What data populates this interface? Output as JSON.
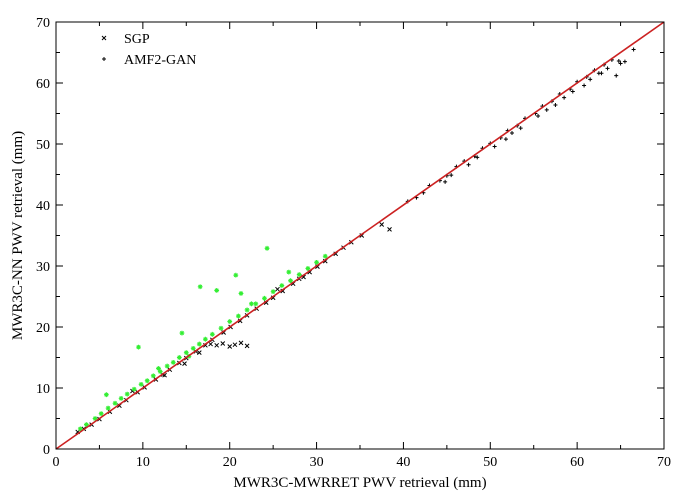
{
  "chart_data": {
    "type": "scatter",
    "xlabel": "MWR3C-MWRRET PWV retrieval (mm)",
    "ylabel": "MWR3C-NN PWV retrieval (mm)",
    "xlim": [
      0,
      70
    ],
    "ylim": [
      0,
      70
    ],
    "x_ticks": [
      "0",
      "10",
      "20",
      "30",
      "40",
      "50",
      "60",
      "70"
    ],
    "y_ticks": [
      "0",
      "10",
      "20",
      "30",
      "40",
      "50",
      "60",
      "70"
    ],
    "grid": false,
    "legend_position": "top-left",
    "legend": [
      {
        "label": "SGP",
        "marker": "x",
        "color": "#000000"
      },
      {
        "label": "AMF2-GAN",
        "marker": "+",
        "color": "#000000"
      }
    ],
    "series": [
      {
        "name": "SGP",
        "marker": "x",
        "color": "#000000",
        "x": [
          2.5,
          3.2,
          4.1,
          5.0,
          6.2,
          7.3,
          8.1,
          9.4,
          10.2,
          11.5,
          12.3,
          13.1,
          14.2,
          15.0,
          16.1,
          17.2,
          18.0,
          19.3,
          20.1,
          21.2,
          22.0,
          23.1,
          24.2,
          25.0,
          26.1,
          27.3,
          28.0,
          29.2,
          30.1,
          31.0,
          32.2,
          33.1,
          34.0,
          35.2,
          37.5,
          38.4,
          17.8,
          18.5,
          19.2,
          20.0,
          20.6,
          21.3,
          22.0,
          8.8,
          12.5,
          16.5,
          14.8,
          25.5,
          28.5
        ],
        "y": [
          2.8,
          3.3,
          4.0,
          4.9,
          6.1,
          7.1,
          8.0,
          9.3,
          10.1,
          11.4,
          12.2,
          13.0,
          14.1,
          14.9,
          16.0,
          17.0,
          17.9,
          19.1,
          20.0,
          21.0,
          21.9,
          23.0,
          24.0,
          24.8,
          25.9,
          27.1,
          27.9,
          29.0,
          29.9,
          30.8,
          32.0,
          33.0,
          33.9,
          35.0,
          36.8,
          36.0,
          17.2,
          17.0,
          17.3,
          16.8,
          17.1,
          17.4,
          16.9,
          9.5,
          12.1,
          15.8,
          14.0,
          26.2,
          28.2
        ]
      },
      {
        "name": "AMF2-GAN",
        "marker": "+",
        "color": "#000000",
        "x": [
          40.5,
          41.5,
          42.3,
          43.0,
          44.2,
          45.0,
          46.1,
          47.0,
          48.2,
          49.1,
          50.0,
          51.2,
          52.0,
          53.1,
          54.0,
          55.2,
          56.0,
          57.1,
          58.0,
          59.2,
          60.0,
          61.1,
          62.0,
          63.1,
          64.0,
          65.0,
          66.5,
          45.5,
          48.5,
          52.5,
          55.5,
          58.5,
          61.5,
          63.5,
          65.5,
          64.5,
          47.5,
          50.5,
          53.5,
          56.5,
          59.5,
          62.5,
          57.5,
          60.8,
          62.8,
          64.8,
          44.8,
          51.8
        ],
        "y": [
          40.6,
          41.2,
          42.0,
          43.2,
          44.0,
          44.8,
          46.3,
          47.2,
          48.0,
          49.3,
          50.1,
          51.0,
          52.2,
          53.0,
          54.2,
          55.0,
          56.2,
          57.0,
          58.2,
          59.0,
          60.2,
          61.0,
          62.1,
          63.0,
          63.8,
          63.2,
          65.5,
          44.9,
          47.8,
          51.8,
          54.6,
          57.6,
          60.6,
          62.4,
          63.5,
          61.2,
          46.6,
          49.6,
          52.6,
          55.6,
          58.6,
          61.6,
          56.4,
          59.6,
          61.6,
          63.6,
          43.8,
          50.8
        ]
      },
      {
        "name": "",
        "marker": "*",
        "color": "#33ee33",
        "x": [
          2.8,
          3.5,
          4.5,
          5.2,
          6.0,
          6.8,
          7.5,
          8.2,
          9.0,
          9.8,
          10.5,
          11.2,
          12.0,
          12.8,
          13.5,
          14.2,
          15.0,
          15.8,
          16.5,
          17.2,
          18.0,
          19.0,
          20.0,
          21.0,
          22.0,
          23.0,
          24.0,
          25.0,
          26.0,
          27.0,
          28.0,
          29.0,
          30.0,
          31.0,
          5.8,
          9.5,
          14.5,
          16.6,
          18.5,
          20.7,
          21.3,
          24.3,
          26.8,
          22.5,
          11.8,
          15.3
        ],
        "y": [
          3.3,
          4.0,
          5.0,
          5.8,
          6.7,
          7.5,
          8.3,
          9.0,
          9.8,
          10.6,
          11.2,
          12.0,
          12.7,
          13.6,
          14.2,
          15.0,
          15.8,
          16.5,
          17.2,
          18.0,
          18.8,
          19.8,
          20.9,
          21.8,
          22.8,
          23.8,
          24.7,
          25.8,
          26.8,
          27.6,
          28.6,
          29.6,
          30.6,
          31.6,
          8.9,
          16.7,
          19.0,
          26.6,
          26.0,
          28.5,
          25.5,
          32.9,
          29.0,
          23.8,
          13.2,
          15.2
        ]
      }
    ],
    "reference_line": {
      "x": [
        0,
        70
      ],
      "y": [
        0,
        70
      ],
      "color": "#cc2222"
    }
  }
}
